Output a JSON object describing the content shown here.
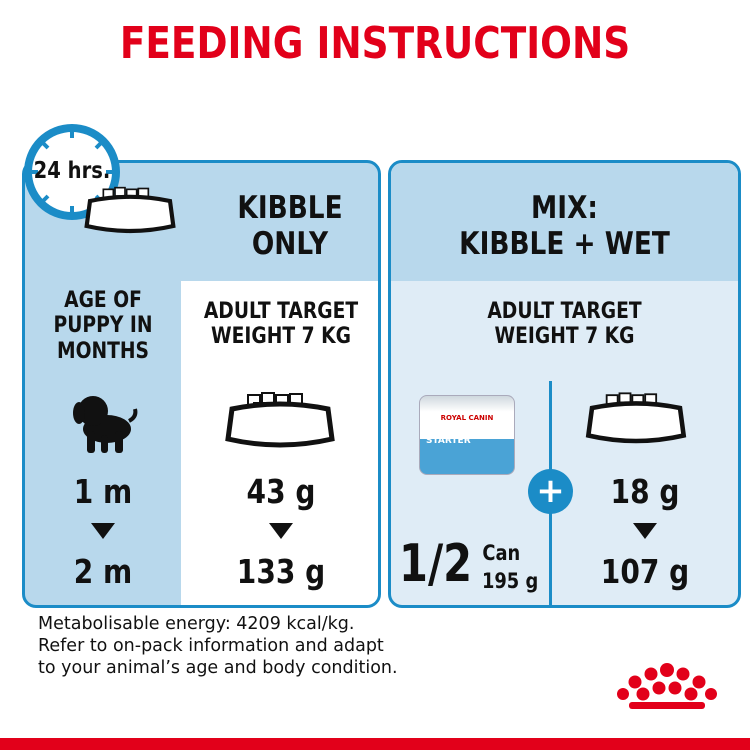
{
  "title": "FEEDING INSTRUCTIONS",
  "clock_label": "24 hrs.",
  "kibble_only": {
    "header_line1": "KIBBLE",
    "header_line2": "ONLY",
    "age_label_lines": [
      "AGE OF",
      "PUPPY IN",
      "MONTHS"
    ],
    "target_lines": [
      "ADULT TARGET",
      "WEIGHT 7 KG"
    ],
    "ages": [
      "1 m",
      "2 m"
    ],
    "amounts": [
      "43 g",
      "133 g"
    ]
  },
  "mix": {
    "header_line1": "MIX:",
    "header_line2": "KIBBLE + WET",
    "target_lines": [
      "ADULT TARGET",
      "WEIGHT 7 KG"
    ],
    "can_fraction": "1/2",
    "can_unit": "Can",
    "can_weight": "195 g",
    "can_brand": "ROYAL CANIN",
    "can_product": "STARTER",
    "plus": "+",
    "amounts": [
      "18 g",
      "107 g"
    ]
  },
  "footer_lines": [
    "Metabolisable energy: 4209 kcal/kg.",
    "Refer to on-pack information and adapt",
    "to your animal’s age and body condition."
  ],
  "brand_logo": "ROYAL CANIN crown",
  "colors": {
    "red": "#e2001a",
    "blue": "#1b8cc7",
    "light_blue": "#b8d8ec",
    "pale_blue": "#dfecf6"
  }
}
